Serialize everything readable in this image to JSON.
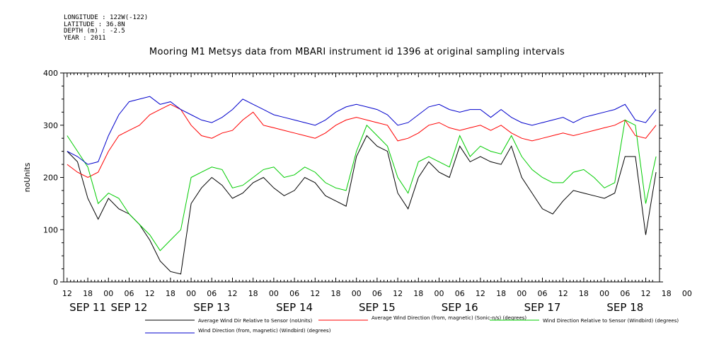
{
  "header": {
    "meta_lines": [
      "LONGITUDE : 122W(-122)",
      "LATITUDE : 36.8N",
      "DEPTH (m) : -2.5",
      "YEAR : 2011"
    ],
    "title": "Mooring M1 Metsys data from MBARI instrument id 1396 at original sampling intervals"
  },
  "chart_data": {
    "type": "line",
    "ylabel": "noUnits",
    "ylim": [
      0,
      400
    ],
    "yticks": [
      0,
      100,
      200,
      300,
      400
    ],
    "x_range_hours": [
      -1,
      172
    ],
    "hour_tick_labels": [
      "12",
      "18",
      "00",
      "06",
      "12",
      "18",
      "00",
      "06",
      "12",
      "18",
      "00",
      "06",
      "12",
      "18",
      "00",
      "06",
      "12",
      "18",
      "00",
      "06",
      "12",
      "18",
      "00",
      "06",
      "12",
      "18",
      "00",
      "06",
      "12",
      "18",
      "00"
    ],
    "date_labels": [
      "SEP 11",
      "SEP 12",
      "SEP 13",
      "SEP 14",
      "SEP 15",
      "SEP 16",
      "SEP 17",
      "SEP 18"
    ],
    "grid": false,
    "legend_position": "bottom",
    "series": [
      {
        "name": "Average Wind Dir Relative to Sensor (noUnits)",
        "color": "#000000",
        "x": [
          0,
          3,
          6,
          9,
          12,
          15,
          18,
          21,
          24,
          27,
          30,
          33,
          36,
          39,
          42,
          45,
          48,
          51,
          54,
          57,
          60,
          63,
          66,
          69,
          72,
          75,
          78,
          81,
          84,
          87,
          90,
          93,
          96,
          99,
          102,
          105,
          108,
          111,
          114,
          117,
          120,
          123,
          126,
          129,
          132,
          135,
          138,
          141,
          144,
          147,
          150,
          153,
          156,
          159,
          162,
          165,
          168,
          171
        ],
        "values": [
          250,
          230,
          160,
          120,
          160,
          140,
          130,
          110,
          80,
          40,
          20,
          15,
          150,
          180,
          200,
          185,
          160,
          170,
          190,
          200,
          180,
          165,
          175,
          200,
          190,
          165,
          155,
          145,
          240,
          280,
          260,
          250,
          170,
          140,
          200,
          230,
          210,
          200,
          260,
          230,
          240,
          230,
          225,
          260,
          200,
          170,
          140,
          130,
          155,
          175,
          170,
          165,
          160,
          170,
          240,
          240,
          90,
          210
        ]
      },
      {
        "name": "Average Wind Direction (from, magnetic) (Sonic-n/s) (degrees)",
        "color": "#ff0000",
        "x": [
          0,
          3,
          6,
          9,
          12,
          15,
          18,
          21,
          24,
          27,
          30,
          33,
          36,
          39,
          42,
          45,
          48,
          51,
          54,
          57,
          60,
          63,
          66,
          69,
          72,
          75,
          78,
          81,
          84,
          87,
          90,
          93,
          96,
          99,
          102,
          105,
          108,
          111,
          114,
          117,
          120,
          123,
          126,
          129,
          132,
          135,
          138,
          141,
          144,
          147,
          150,
          153,
          156,
          159,
          162,
          165,
          168,
          171
        ],
        "values": [
          225,
          210,
          200,
          210,
          250,
          280,
          290,
          300,
          320,
          330,
          340,
          330,
          300,
          280,
          275,
          285,
          290,
          310,
          325,
          300,
          295,
          290,
          285,
          280,
          275,
          285,
          300,
          310,
          315,
          310,
          305,
          300,
          270,
          275,
          285,
          300,
          305,
          295,
          290,
          295,
          300,
          290,
          300,
          285,
          275,
          270,
          275,
          280,
          285,
          280,
          285,
          290,
          295,
          300,
          310,
          280,
          275,
          300
        ]
      },
      {
        "name": "Wind Direction Relative to Sensor (Windbird) (degrees)",
        "color": "#00cc00",
        "x": [
          0,
          3,
          6,
          9,
          12,
          15,
          18,
          21,
          24,
          27,
          30,
          33,
          36,
          39,
          42,
          45,
          48,
          51,
          54,
          57,
          60,
          63,
          66,
          69,
          72,
          75,
          78,
          81,
          84,
          87,
          90,
          93,
          96,
          99,
          102,
          105,
          108,
          111,
          114,
          117,
          120,
          123,
          126,
          129,
          132,
          135,
          138,
          141,
          144,
          147,
          150,
          153,
          156,
          159,
          162,
          165,
          168,
          171
        ],
        "values": [
          280,
          250,
          220,
          150,
          170,
          160,
          130,
          110,
          90,
          60,
          80,
          100,
          200,
          210,
          220,
          215,
          180,
          185,
          200,
          215,
          220,
          200,
          205,
          220,
          210,
          190,
          180,
          175,
          250,
          300,
          280,
          260,
          200,
          170,
          230,
          240,
          230,
          220,
          280,
          240,
          260,
          250,
          245,
          280,
          240,
          215,
          200,
          190,
          190,
          210,
          215,
          200,
          180,
          190,
          310,
          300,
          150,
          240
        ]
      },
      {
        "name": "Wind Direction (from, magnetic) (Windbird) (degrees)",
        "color": "#0000cc",
        "x": [
          0,
          3,
          6,
          9,
          12,
          15,
          18,
          21,
          24,
          27,
          30,
          33,
          36,
          39,
          42,
          45,
          48,
          51,
          54,
          57,
          60,
          63,
          66,
          69,
          72,
          75,
          78,
          81,
          84,
          87,
          90,
          93,
          96,
          99,
          102,
          105,
          108,
          111,
          114,
          117,
          120,
          123,
          126,
          129,
          132,
          135,
          138,
          141,
          144,
          147,
          150,
          153,
          156,
          159,
          162,
          165,
          168,
          171
        ],
        "values": [
          250,
          240,
          225,
          230,
          280,
          320,
          345,
          350,
          355,
          340,
          345,
          330,
          320,
          310,
          305,
          315,
          330,
          350,
          340,
          330,
          320,
          315,
          310,
          305,
          300,
          310,
          325,
          335,
          340,
          335,
          330,
          320,
          300,
          305,
          320,
          335,
          340,
          330,
          325,
          330,
          330,
          315,
          330,
          315,
          305,
          300,
          305,
          310,
          315,
          305,
          315,
          320,
          325,
          330,
          340,
          310,
          305,
          330
        ]
      }
    ]
  }
}
